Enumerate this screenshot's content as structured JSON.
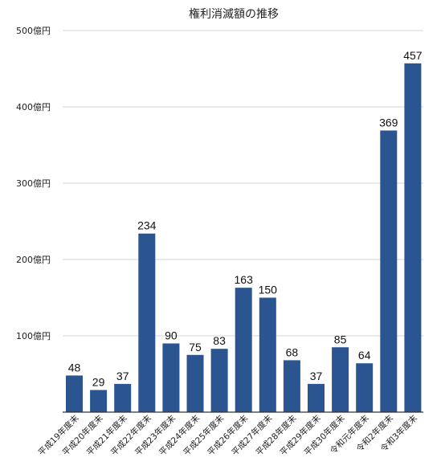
{
  "colors": {
    "bar": "#2b5590",
    "grid": "#d6d6d6",
    "axis": "#333333",
    "background": "#ffffff"
  },
  "chart_data": {
    "type": "bar",
    "title": "権利消滅額の推移",
    "xlabel": "",
    "ylabel": "",
    "ylim": [
      0,
      500
    ],
    "grid": true,
    "legend": "none",
    "y_ticks": [
      {
        "value": 100,
        "label": "100億円"
      },
      {
        "value": 200,
        "label": "200億円"
      },
      {
        "value": 300,
        "label": "300億円"
      },
      {
        "value": 400,
        "label": "400億円"
      },
      {
        "value": 500,
        "label": "500億円"
      }
    ],
    "categories": [
      "平成19年度末",
      "平成20年度末",
      "平成21年度末",
      "平成22年度末",
      "平成23年度末",
      "平成24年度末",
      "平成25年度末",
      "平成26年度末",
      "平成27年度末",
      "平成28年度末",
      "平成29年度末",
      "平成30年度末",
      "令和元年度末",
      "令和2年度末",
      "令和3年度末"
    ],
    "values": [
      48,
      29,
      37,
      234,
      90,
      75,
      83,
      163,
      150,
      68,
      37,
      85,
      64,
      369,
      457
    ],
    "data_labels": [
      "48",
      "29",
      "37",
      "234",
      "90",
      "75",
      "83",
      "163",
      "150",
      "68",
      "37",
      "85",
      "64",
      "369",
      "457"
    ]
  }
}
